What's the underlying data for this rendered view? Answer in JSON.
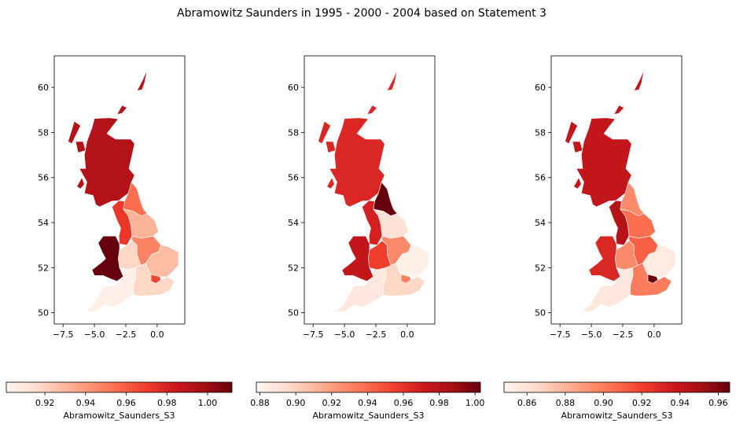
{
  "figure": {
    "title": "Abramowitz Saunders in 1995 - 2000 - 2004 based on Statement 3"
  },
  "colormap": {
    "name": "Reds",
    "stops": [
      "#fff5f0",
      "#fee0d2",
      "#fcbba1",
      "#fc9272",
      "#fb6a4a",
      "#ef3b2c",
      "#cb181d",
      "#a50f15",
      "#67000d"
    ]
  },
  "chart_data": [
    {
      "type": "choropleth",
      "panel": "1995",
      "xlim": [
        -8.2,
        2.2
      ],
      "ylim": [
        49.5,
        61.4
      ],
      "xticks": [
        -7.5,
        -5.0,
        -2.5,
        0.0
      ],
      "xtick_labels": [
        "−7.5",
        "−5.0",
        "−2.5",
        "0.0"
      ],
      "yticks": [
        50,
        52,
        54,
        56,
        58,
        60
      ],
      "ytick_labels": [
        "50",
        "52",
        "54",
        "56",
        "58",
        "60"
      ],
      "colorbar": {
        "label": "Abramowitz_Saunders_S3",
        "vmin": 0.901,
        "vmax": 1.012,
        "ticks": [
          0.92,
          0.94,
          0.96,
          0.98,
          1.0
        ],
        "tick_labels": [
          "0.92",
          "0.94",
          "0.96",
          "0.98",
          "1.00"
        ]
      },
      "regions": [
        {
          "name": "Scotland",
          "value": 0.993
        },
        {
          "name": "North East",
          "value": 0.955
        },
        {
          "name": "North West",
          "value": 0.972
        },
        {
          "name": "Yorkshire and the Humber",
          "value": 0.931
        },
        {
          "name": "Wales",
          "value": 1.012
        },
        {
          "name": "West Midlands",
          "value": 0.918
        },
        {
          "name": "East Midlands",
          "value": 0.948
        },
        {
          "name": "East of England",
          "value": 0.928
        },
        {
          "name": "London",
          "value": 0.968
        },
        {
          "name": "South East",
          "value": 0.918
        },
        {
          "name": "South West",
          "value": 0.905
        }
      ]
    },
    {
      "type": "choropleth",
      "panel": "2000",
      "xlim": [
        -8.2,
        2.2
      ],
      "ylim": [
        49.5,
        61.4
      ],
      "xticks": [
        -7.5,
        -5.0,
        -2.5,
        0.0
      ],
      "xtick_labels": [
        "−7.5",
        "−5.0",
        "−2.5",
        "0.0"
      ],
      "yticks": [
        50,
        52,
        54,
        56,
        58,
        60
      ],
      "ytick_labels": [
        "50",
        "52",
        "54",
        "56",
        "58",
        "60"
      ],
      "colorbar": {
        "label": "Abramowitz_Saunders_S3",
        "vmin": 0.878,
        "vmax": 1.003,
        "ticks": [
          0.88,
          0.9,
          0.92,
          0.94,
          0.96,
          0.98,
          1.0
        ],
        "tick_labels": [
          "0.88",
          "0.90",
          "0.92",
          "0.94",
          "0.96",
          "0.98",
          "1.00"
        ]
      },
      "regions": [
        {
          "name": "Scotland",
          "value": 0.965
        },
        {
          "name": "North East",
          "value": 1.003
        },
        {
          "name": "North West",
          "value": 0.968
        },
        {
          "name": "Yorkshire and the Humber",
          "value": 0.892
        },
        {
          "name": "Wales",
          "value": 0.975
        },
        {
          "name": "West Midlands",
          "value": 0.955
        },
        {
          "name": "East Midlands",
          "value": 0.928
        },
        {
          "name": "East of England",
          "value": 0.882
        },
        {
          "name": "London",
          "value": 0.932
        },
        {
          "name": "South East",
          "value": 0.897
        },
        {
          "name": "South West",
          "value": 0.888
        }
      ]
    },
    {
      "type": "choropleth",
      "panel": "2004",
      "xlim": [
        -8.2,
        2.2
      ],
      "ylim": [
        49.5,
        61.4
      ],
      "xticks": [
        -7.5,
        -5.0,
        -2.5,
        0.0
      ],
      "xtick_labels": [
        "−7.5",
        "−5.0",
        "−2.5",
        "0.0"
      ],
      "yticks": [
        50,
        52,
        54,
        56,
        58,
        60
      ],
      "ytick_labels": [
        "50",
        "52",
        "54",
        "56",
        "58",
        "60"
      ],
      "colorbar": {
        "label": "Abramowitz_Saunders_S3",
        "vmin": 0.848,
        "vmax": 0.966,
        "ticks": [
          0.86,
          0.88,
          0.9,
          0.92,
          0.94,
          0.96
        ],
        "tick_labels": [
          "0.86",
          "0.88",
          "0.90",
          "0.92",
          "0.94",
          "0.96"
        ]
      },
      "regions": [
        {
          "name": "Scotland",
          "value": 0.94
        },
        {
          "name": "North East",
          "value": 0.895
        },
        {
          "name": "North West",
          "value": 0.945
        },
        {
          "name": "Yorkshire and the Humber",
          "value": 0.905
        },
        {
          "name": "Wales",
          "value": 0.93
        },
        {
          "name": "West Midlands",
          "value": 0.895
        },
        {
          "name": "East Midlands",
          "value": 0.91
        },
        {
          "name": "East of England",
          "value": 0.855
        },
        {
          "name": "London",
          "value": 0.966
        },
        {
          "name": "South East",
          "value": 0.9
        },
        {
          "name": "South West",
          "value": 0.858
        }
      ]
    }
  ]
}
